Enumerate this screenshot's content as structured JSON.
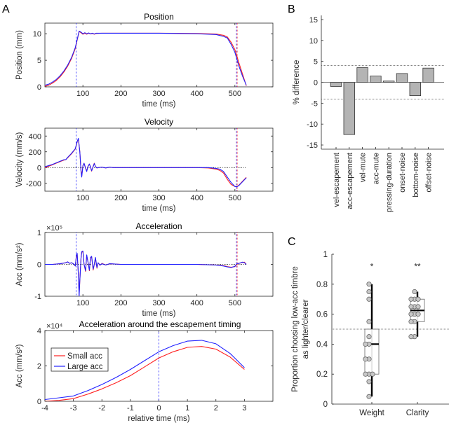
{
  "panel_labels": {
    "a": "A",
    "b": "B",
    "c": "C"
  },
  "colors": {
    "small_acc": "#ff2020",
    "large_acc": "#2020ff",
    "bar_fill": "#b4b4b4",
    "point_fill": "#c8c8c8"
  },
  "chart_data": [
    {
      "type": "line",
      "title": "Position",
      "xlabel": "time (ms)",
      "ylabel": "Position (mm)",
      "xlim": [
        0,
        600
      ],
      "ylim": [
        0,
        12
      ],
      "xticks": [
        100,
        200,
        300,
        400,
        500
      ],
      "yticks": [
        0,
        5,
        10
      ],
      "grid": false,
      "vlines": [
        {
          "x": 82,
          "color": "#2020ff"
        },
        {
          "x": 504,
          "color": "#2020ff"
        },
        {
          "x": 506,
          "color": "#ff2020"
        }
      ],
      "series": [
        {
          "color": "#ff2020",
          "x": [
            0,
            10,
            20,
            30,
            40,
            50,
            60,
            70,
            80,
            85,
            90,
            95,
            100,
            105,
            110,
            115,
            120,
            125,
            130,
            135,
            150,
            200,
            300,
            400,
            450,
            470,
            480,
            490,
            500,
            505,
            510,
            520,
            530
          ],
          "y": [
            0.1,
            0.3,
            0.7,
            1.2,
            1.9,
            2.8,
            3.9,
            5.3,
            7.2,
            8.8,
            10.4,
            10.2,
            9.9,
            10.1,
            9.9,
            10.1,
            9.95,
            10.05,
            9.9,
            10.05,
            10.1,
            10.1,
            10.1,
            10.05,
            9.95,
            9.7,
            9.4,
            8.4,
            7.0,
            5.9,
            4.6,
            2.4,
            0.2
          ]
        },
        {
          "color": "#2020ff",
          "x": [
            0,
            10,
            20,
            30,
            40,
            50,
            60,
            70,
            80,
            85,
            90,
            95,
            100,
            105,
            110,
            115,
            120,
            125,
            130,
            135,
            150,
            200,
            300,
            400,
            450,
            470,
            480,
            490,
            500,
            505,
            510,
            520,
            530
          ],
          "y": [
            0.3,
            0.5,
            0.9,
            1.4,
            2.1,
            3.0,
            4.1,
            5.5,
            7.4,
            8.9,
            10.5,
            10.3,
            10.0,
            10.2,
            10.0,
            10.15,
            10.0,
            10.1,
            9.95,
            10.1,
            10.1,
            10.1,
            10.1,
            10.0,
            9.85,
            9.5,
            9.2,
            8.0,
            6.5,
            5.3,
            4.0,
            2.0,
            0.3
          ]
        }
      ]
    },
    {
      "type": "line",
      "title": "Velocity",
      "xlabel": "time (ms)",
      "ylabel": "Velocity (mm/s)",
      "xlim": [
        0,
        600
      ],
      "ylim": [
        -300,
        500
      ],
      "xticks": [
        100,
        200,
        300,
        400,
        500
      ],
      "yticks": [
        -200,
        0,
        200,
        400
      ],
      "grid": false,
      "zero_line": [
        0,
        530
      ],
      "vlines": [
        {
          "x": 82,
          "color": "#2020ff"
        },
        {
          "x": 504,
          "color": "#2020ff"
        },
        {
          "x": 506,
          "color": "#ff2020"
        }
      ],
      "series": [
        {
          "color": "#ff2020",
          "x": [
            0,
            20,
            40,
            50,
            55,
            60,
            70,
            80,
            85,
            88,
            92,
            95,
            97,
            100,
            103,
            107,
            110,
            113,
            117,
            120,
            123,
            127,
            130,
            133,
            137,
            140,
            150,
            160,
            170,
            180,
            200,
            300,
            400,
            430,
            450,
            460,
            470,
            480,
            490,
            500,
            505,
            510,
            520,
            530
          ],
          "y": [
            0,
            35,
            75,
            95,
            100,
            125,
            175,
            235,
            325,
            365,
            200,
            -40,
            -110,
            25,
            55,
            -5,
            -45,
            10,
            45,
            5,
            -45,
            15,
            55,
            15,
            -5,
            0,
            5,
            -5,
            5,
            0,
            0,
            0,
            0,
            -5,
            -20,
            -35,
            -70,
            -150,
            -215,
            -240,
            -240,
            -225,
            -175,
            -125
          ]
        },
        {
          "color": "#2020ff",
          "x": [
            0,
            20,
            40,
            50,
            55,
            60,
            70,
            80,
            85,
            88,
            92,
            95,
            97,
            100,
            103,
            107,
            110,
            113,
            117,
            120,
            123,
            127,
            130,
            133,
            137,
            140,
            150,
            160,
            170,
            180,
            200,
            300,
            400,
            430,
            450,
            460,
            470,
            480,
            490,
            500,
            505,
            510,
            520,
            530
          ],
          "y": [
            10,
            40,
            80,
            100,
            100,
            130,
            180,
            240,
            330,
            370,
            200,
            -50,
            -120,
            20,
            55,
            -10,
            -50,
            10,
            45,
            10,
            -40,
            10,
            50,
            15,
            -5,
            0,
            5,
            -5,
            5,
            0,
            0,
            0,
            0,
            0,
            -10,
            -20,
            -50,
            -120,
            -190,
            -240,
            -245,
            -230,
            -180,
            -130
          ]
        }
      ]
    },
    {
      "type": "line",
      "title": "Acceleration",
      "xlabel": "time (ms)",
      "ylabel": "Acc (mm/s²)",
      "y_scale": "×10⁵",
      "xlim": [
        0,
        600
      ],
      "ylim": [
        -1,
        1
      ],
      "xticks": [
        100,
        200,
        300,
        400,
        500
      ],
      "yticks": [
        -1,
        0,
        1
      ],
      "grid": false,
      "zero_line": [
        0,
        530
      ],
      "vlines": [
        {
          "x": 82,
          "color": "#2020ff"
        },
        {
          "x": 504,
          "color": "#2020ff"
        },
        {
          "x": 506,
          "color": "#ff2020"
        }
      ],
      "series": [
        {
          "color": "#ff2020",
          "x": [
            0,
            20,
            40,
            55,
            60,
            65,
            70,
            75,
            80,
            83,
            85,
            88,
            90,
            92,
            95,
            97,
            100,
            103,
            107,
            110,
            113,
            117,
            120,
            123,
            127,
            130,
            133,
            137,
            140,
            145,
            150,
            160,
            170,
            200,
            300,
            400,
            450,
            470,
            480,
            490,
            500,
            505,
            510,
            520,
            525,
            530
          ],
          "y": [
            0,
            0,
            0.02,
            0.05,
            0.08,
            0.03,
            0.05,
            0.02,
            -0.05,
            0.28,
            0.33,
            -0.3,
            -0.95,
            -0.5,
            0.2,
            0.38,
            0.4,
            0.0,
            -0.22,
            0.28,
            0.1,
            -0.2,
            0.2,
            0.24,
            -0.18,
            0.0,
            0.2,
            -0.12,
            0.05,
            -0.03,
            0.03,
            -0.02,
            0.02,
            0,
            0,
            0,
            -0.02,
            -0.04,
            -0.07,
            -0.09,
            -0.07,
            0.0,
            0.03,
            0.06,
            0.07,
            0
          ]
        },
        {
          "color": "#2020ff",
          "x": [
            0,
            20,
            40,
            55,
            60,
            65,
            70,
            75,
            80,
            83,
            85,
            88,
            90,
            92,
            95,
            97,
            100,
            103,
            107,
            110,
            113,
            117,
            120,
            123,
            127,
            130,
            133,
            137,
            140,
            145,
            150,
            160,
            170,
            200,
            300,
            400,
            450,
            470,
            480,
            490,
            500,
            505,
            510,
            520,
            525,
            530
          ],
          "y": [
            0,
            0,
            0.02,
            0.05,
            0.08,
            0.03,
            0.05,
            0.02,
            -0.05,
            0.3,
            0.35,
            -0.3,
            -1,
            -0.5,
            0.2,
            0.4,
            0.42,
            0.0,
            -0.2,
            0.3,
            0.1,
            -0.18,
            0.22,
            0.25,
            -0.15,
            0.0,
            0.22,
            -0.1,
            0.05,
            -0.02,
            0.02,
            -0.02,
            0.02,
            0,
            0,
            0,
            -0.02,
            -0.05,
            -0.08,
            -0.1,
            -0.06,
            0.02,
            0.03,
            0.07,
            0.05,
            0
          ]
        }
      ]
    },
    {
      "type": "line",
      "title": "Acceleration around the escapement timing",
      "xlabel": "relative time (ms)",
      "ylabel": "Acc (mm/s²)",
      "y_scale": "×10⁴",
      "xlim": [
        -4,
        4
      ],
      "ylim": [
        0,
        4
      ],
      "xticks": [
        -4,
        -3,
        -2,
        -1,
        0,
        1,
        2,
        3
      ],
      "yticks": [
        0,
        2,
        4
      ],
      "grid": false,
      "legend": "top-left",
      "vlines": [
        {
          "x": 0,
          "color": "#2020ff"
        }
      ],
      "series": [
        {
          "name": "Small acc",
          "color": "#ff2020",
          "x": [
            -4,
            -3.5,
            -3,
            -2.5,
            -2,
            -1.5,
            -1,
            -0.5,
            0,
            0.5,
            1,
            1.5,
            2,
            2.5,
            3
          ],
          "y": [
            0,
            0.05,
            0.15,
            0.4,
            0.7,
            1.05,
            1.45,
            1.95,
            2.45,
            2.8,
            3.05,
            3.1,
            2.95,
            2.5,
            1.8
          ]
        },
        {
          "name": "Large acc",
          "color": "#2020ff",
          "x": [
            -4,
            -3.5,
            -3,
            -2.5,
            -2,
            -1.5,
            -1,
            -0.5,
            0,
            0.5,
            1,
            1.5,
            2,
            2.5,
            3
          ],
          "y": [
            0.1,
            0.2,
            0.3,
            0.6,
            0.95,
            1.35,
            1.8,
            2.3,
            2.8,
            3.15,
            3.4,
            3.45,
            3.25,
            2.7,
            1.9
          ]
        }
      ]
    },
    {
      "type": "bar",
      "title": "",
      "xlabel": "",
      "ylabel": "% difference",
      "ylim": [
        -16,
        16
      ],
      "yticks": [
        -15,
        -10,
        -5,
        0,
        5,
        10,
        15
      ],
      "grid": false,
      "reference_lines": [
        4,
        -4
      ],
      "categories": [
        "vel-escapement",
        "acc-escapement",
        "vel-mute",
        "acc-mute",
        "pressing-duration",
        "onset-noise",
        "bottom-noise",
        "offset-noise"
      ],
      "values": [
        -1.0,
        -12.5,
        3.5,
        1.5,
        0.3,
        2.1,
        -3.2,
        3.4
      ]
    },
    {
      "type": "box",
      "title": "",
      "xlabel": "",
      "ylabel": "Proportion choosing low-acc timbre",
      "ylabel_line2": "as lighter/clearer",
      "ylim": [
        0,
        1
      ],
      "yticks": [
        0,
        0.2,
        0.4,
        0.6,
        0.8,
        1
      ],
      "grid": false,
      "reference_line": 0.5,
      "categories": [
        "Weight",
        "Clarity"
      ],
      "significance": [
        "*",
        "**"
      ],
      "boxes": [
        {
          "q1": 0.2,
          "median": 0.4,
          "q3": 0.5,
          "whisker_low": 0.05,
          "whisker_high": 0.8,
          "points": [
            0.8,
            0.75,
            0.7,
            0.55,
            0.45,
            0.4,
            0.4,
            0.3,
            0.3,
            0.2,
            0.2,
            0.2,
            0.15,
            0.05
          ]
        },
        {
          "q1": 0.55,
          "median": 0.625,
          "q3": 0.7,
          "whisker_low": 0.45,
          "whisker_high": 0.75,
          "points": [
            0.75,
            0.7,
            0.7,
            0.7,
            0.65,
            0.65,
            0.65,
            0.6,
            0.6,
            0.6,
            0.55,
            0.55,
            0.45,
            0.45
          ]
        }
      ]
    }
  ]
}
